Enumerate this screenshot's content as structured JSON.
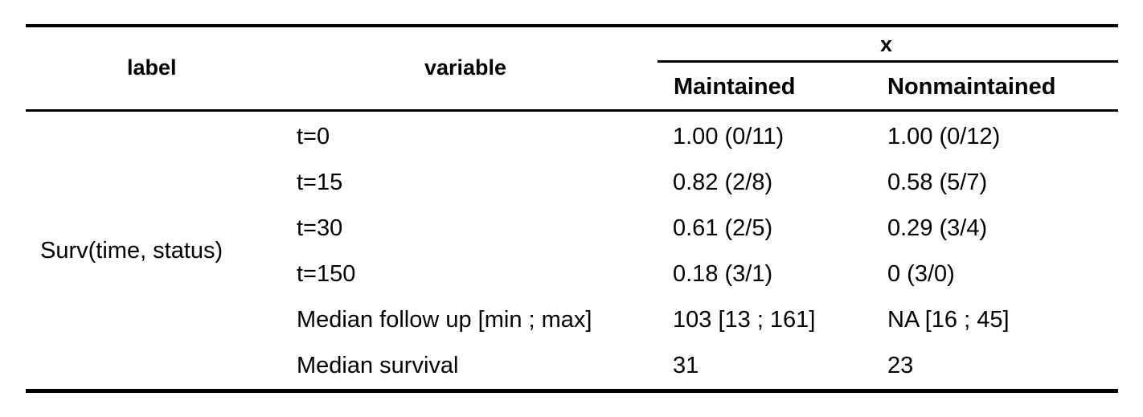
{
  "table": {
    "header": {
      "label": "label",
      "variable": "variable",
      "span": "x",
      "col1": "Maintained",
      "col2": "Nonmaintained"
    },
    "group_label": "Surv(time, status)",
    "rows": [
      {
        "variable": "t=0",
        "maintained": "1.00 (0/11)",
        "nonmaintained": "1.00 (0/12)"
      },
      {
        "variable": "t=15",
        "maintained": "0.82 (2/8)",
        "nonmaintained": "0.58 (5/7)"
      },
      {
        "variable": "t=30",
        "maintained": "0.61 (2/5)",
        "nonmaintained": "0.29 (3/4)"
      },
      {
        "variable": "t=150",
        "maintained": "0.18 (3/1)",
        "nonmaintained": "0 (3/0)"
      },
      {
        "variable": "Median follow up [min ; max]",
        "maintained": "103 [13 ; 161]",
        "nonmaintained": "NA [16 ; 45]"
      },
      {
        "variable": "Median survival",
        "maintained": "31",
        "nonmaintained": "23"
      }
    ]
  }
}
